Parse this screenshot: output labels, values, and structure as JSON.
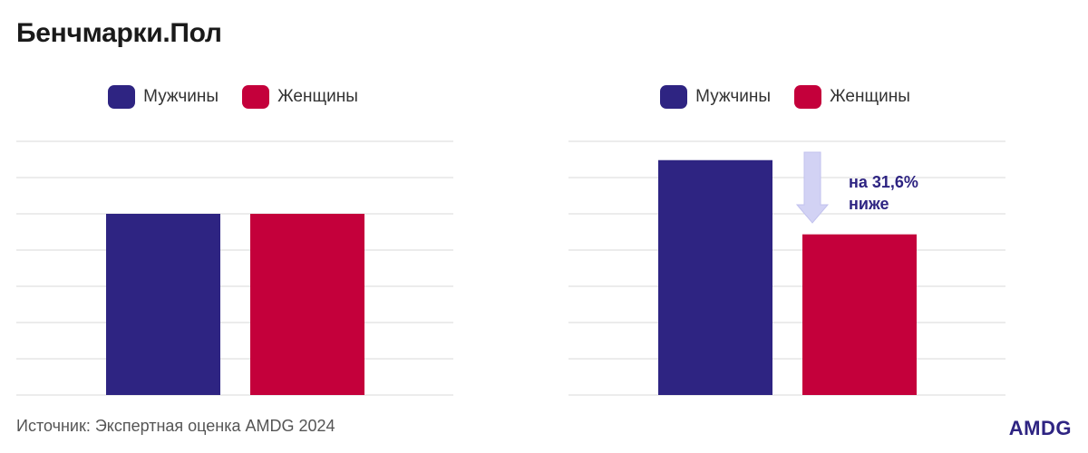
{
  "title": "Бенчмарки.Пол",
  "source": "Источник: Экспертная оценка AMDG 2024",
  "logo": "AMDG",
  "colors": {
    "men": "#2e2482",
    "women": "#c4003b",
    "arrow": "#d2d2f4",
    "grid": "#d8d8d8",
    "annotation": "#2e2482"
  },
  "chart_data": [
    {
      "type": "bar",
      "categories": [
        "Мужчины",
        "Женщины"
      ],
      "values": [
        100,
        100
      ],
      "colors": [
        "#2e2482",
        "#c4003b"
      ],
      "legend": [
        "Мужчины",
        "Женщины"
      ],
      "ylim": [
        0,
        140
      ],
      "grid": true,
      "legend_position": "top-center",
      "ytick_labels": false
    },
    {
      "type": "bar",
      "categories": [
        "Мужчины",
        "Женщины"
      ],
      "values": [
        100,
        68.4
      ],
      "colors": [
        "#2e2482",
        "#c4003b"
      ],
      "legend": [
        "Мужчины",
        "Женщины"
      ],
      "ylim": [
        0,
        108
      ],
      "grid": true,
      "legend_position": "top-center",
      "ytick_labels": false,
      "annotation": {
        "line1": "на 31,6%",
        "line2": "ниже",
        "icon": "arrow-down-icon"
      }
    }
  ]
}
